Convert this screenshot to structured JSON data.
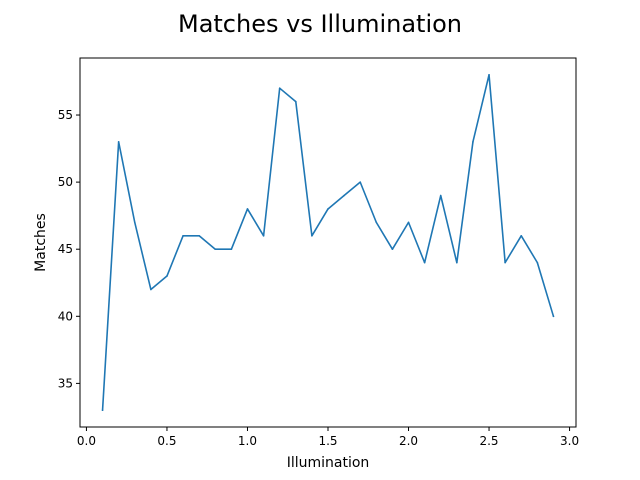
{
  "chart_data": {
    "type": "line",
    "title": "Matches vs Illumination",
    "xlabel": "Illumination",
    "ylabel": "Matches",
    "xlim": [
      -0.04,
      3.04
    ],
    "ylim": [
      31.75,
      59.25
    ],
    "xticks": [
      0.0,
      0.5,
      1.0,
      1.5,
      2.0,
      2.5,
      3.0
    ],
    "xtick_labels": [
      "0.0",
      "0.5",
      "1.0",
      "1.5",
      "2.0",
      "2.5",
      "3.0"
    ],
    "yticks": [
      35,
      40,
      45,
      50,
      55
    ],
    "ytick_labels": [
      "35",
      "40",
      "45",
      "50",
      "55"
    ],
    "grid": false,
    "series": [
      {
        "color": "#1f77b4",
        "x": [
          0.1,
          0.2,
          0.3,
          0.4,
          0.5,
          0.6,
          0.7,
          0.8,
          0.9,
          1.0,
          1.1,
          1.2,
          1.3,
          1.4,
          1.5,
          1.6,
          1.7,
          1.8,
          1.9,
          2.0,
          2.1,
          2.2,
          2.3,
          2.4,
          2.5,
          2.6,
          2.7,
          2.8,
          2.9
        ],
        "y": [
          33,
          53,
          47,
          42,
          43,
          46,
          46,
          45,
          45,
          48,
          46,
          57,
          56,
          46,
          48,
          49,
          50,
          47,
          45,
          47,
          44,
          49,
          44,
          53,
          58,
          44,
          46,
          44,
          40
        ]
      }
    ]
  }
}
